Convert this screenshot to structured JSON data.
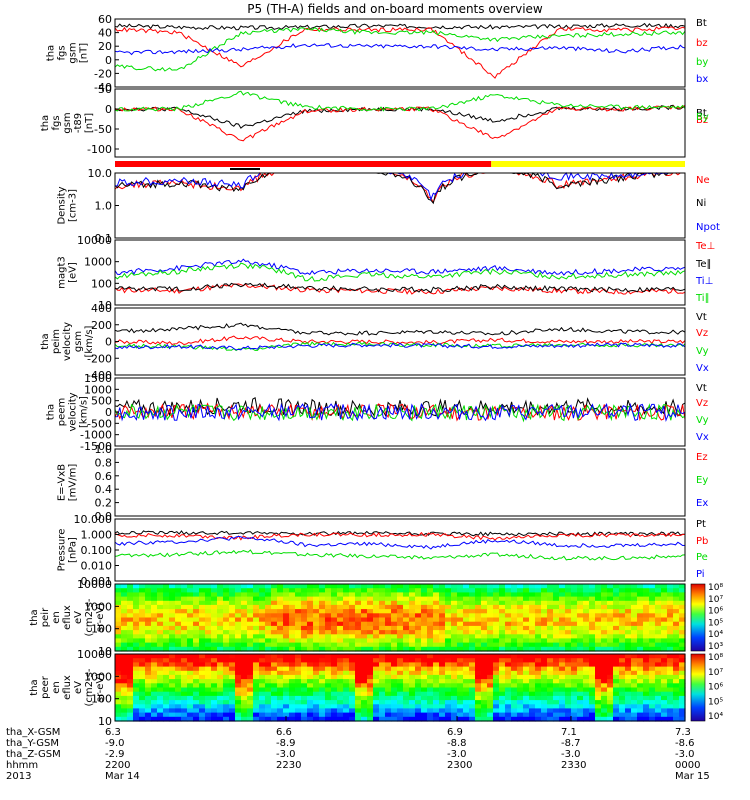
{
  "title": "P5 (TH-A) fields and on-board moments overview",
  "colors": {
    "black": "#000000",
    "red": "#ff0000",
    "green": "#00dd00",
    "blue": "#0000ff",
    "yellow": "#ffff00",
    "orange": "#ff8000"
  },
  "chart_data": [
    {
      "type": "line",
      "id": "fgs",
      "ylabel": [
        "tha",
        "fgs",
        "gsm",
        "[nT]"
      ],
      "ylim": [
        -40,
        60
      ],
      "ticks": [
        "60",
        "40",
        "20",
        "0",
        "-20",
        "-40"
      ],
      "tick_values": [
        60,
        40,
        20,
        0,
        -20,
        -40
      ],
      "series": [
        {
          "name": "Bt",
          "color": "#000000",
          "levels": [
            50,
            48,
            47,
            48,
            50,
            49,
            48,
            49,
            51,
            50
          ]
        },
        {
          "name": "bz",
          "color": "#ff0000",
          "levels": [
            45,
            40,
            -10,
            45,
            44,
            45,
            -25,
            45,
            44,
            46
          ]
        },
        {
          "name": "by",
          "color": "#00dd00",
          "levels": [
            -10,
            -15,
            40,
            45,
            40,
            40,
            30,
            35,
            38,
            40
          ]
        },
        {
          "name": "bx",
          "color": "#0000ff",
          "levels": [
            10,
            12,
            15,
            22,
            20,
            20,
            15,
            18,
            12,
            20
          ]
        }
      ]
    },
    {
      "type": "line",
      "id": "fgs89",
      "ylabel": [
        "tha",
        "fgs",
        "gsm",
        "-t89",
        "[nT]"
      ],
      "ylim": [
        -120,
        50
      ],
      "ticks": [
        "50",
        "0",
        "-50",
        "-100"
      ],
      "tick_values": [
        50,
        0,
        -50,
        -100
      ],
      "series": [
        {
          "name": "Bt",
          "color": "#000000",
          "levels": [
            0,
            0,
            -45,
            -5,
            0,
            0,
            -30,
            2,
            0,
            5
          ]
        },
        {
          "name": "Bz",
          "color": "#ff0000",
          "levels": [
            0,
            0,
            -80,
            -5,
            0,
            0,
            -75,
            0,
            0,
            5
          ]
        },
        {
          "name": "By",
          "color": "#00dd00",
          "levels": [
            0,
            0,
            40,
            5,
            0,
            0,
            35,
            10,
            5,
            5
          ]
        }
      ]
    },
    {
      "type": "line",
      "id": "density",
      "ylabel": [
        "Density",
        "[cm-3]"
      ],
      "log": true,
      "ylim": [
        0.1,
        10
      ],
      "ticks": [
        "10.0",
        "1.0",
        "0.1"
      ],
      "tick_values": [
        10,
        1,
        0.1
      ],
      "series": [
        {
          "name": "Ne",
          "color": "#ff0000",
          "levels": [
            4,
            5,
            3,
            20,
            15,
            1.2,
            15,
            4,
            7,
            12
          ]
        },
        {
          "name": "Ni",
          "color": "#000000",
          "levels": [
            4,
            5,
            3,
            20,
            15,
            1.2,
            15,
            4,
            7,
            12
          ]
        },
        {
          "name": "Npot",
          "color": "#0000ff",
          "levels": [
            5,
            6,
            4,
            25,
            18,
            1.5,
            18,
            8,
            8,
            13
          ]
        }
      ]
    },
    {
      "type": "line",
      "id": "magt3",
      "ylabel": [
        "magt3",
        "[eV]"
      ],
      "log": true,
      "ylim": [
        10,
        10000
      ],
      "ticks": [
        "10000",
        "1000",
        "100",
        "10"
      ],
      "tick_values": [
        10000,
        1000,
        100,
        10
      ],
      "series": [
        {
          "name": "Te⊥",
          "color": "#ff0000",
          "levels": [
            50,
            45,
            80,
            50,
            45,
            40,
            60,
            45,
            40,
            45
          ]
        },
        {
          "name": "Te∥",
          "color": "#000000",
          "levels": [
            60,
            55,
            90,
            60,
            55,
            50,
            70,
            55,
            50,
            55
          ]
        },
        {
          "name": "Ti⊥",
          "color": "#0000ff",
          "levels": [
            300,
            500,
            1000,
            300,
            400,
            350,
            500,
            300,
            400,
            500
          ]
        },
        {
          "name": "Ti∥",
          "color": "#00dd00",
          "levels": [
            200,
            350,
            700,
            150,
            250,
            200,
            350,
            200,
            250,
            300
          ]
        }
      ]
    },
    {
      "type": "line",
      "id": "peim",
      "ylabel": [
        "tha",
        "peim",
        "velocity",
        "gsm",
        "[km/s]"
      ],
      "ylim": [
        -400,
        400
      ],
      "ticks": [
        "400",
        "200",
        "0",
        "-200",
        "-400"
      ],
      "tick_values": [
        400,
        200,
        0,
        -200,
        -400
      ],
      "series": [
        {
          "name": "Vt",
          "color": "#000000",
          "levels": [
            120,
            150,
            200,
            100,
            100,
            120,
            90,
            150,
            120,
            110
          ]
        },
        {
          "name": "Vz",
          "color": "#ff0000",
          "levels": [
            0,
            -20,
            50,
            0,
            0,
            -10,
            20,
            0,
            0,
            0
          ]
        },
        {
          "name": "Vy",
          "color": "#00dd00",
          "levels": [
            -50,
            -60,
            -100,
            -30,
            -30,
            -40,
            -50,
            -40,
            -40,
            -50
          ]
        },
        {
          "name": "Vx",
          "color": "#0000ff",
          "levels": [
            -70,
            -60,
            -80,
            -50,
            -40,
            -50,
            -60,
            -50,
            -40,
            -50
          ]
        }
      ]
    },
    {
      "type": "line",
      "id": "peem",
      "ylabel": [
        "tha",
        "peem",
        "velocity",
        "[km/s]"
      ],
      "ylim": [
        -1500,
        1500
      ],
      "ticks": [
        "1500",
        "1000",
        "500",
        "0",
        "-500",
        "-1000",
        "-1500"
      ],
      "tick_values": [
        1500,
        1000,
        500,
        0,
        -500,
        -1000,
        -1500
      ],
      "series": [
        {
          "name": "Vt",
          "color": "#000000",
          "levels": [
            150,
            200,
            300,
            200,
            150,
            200,
            200,
            250,
            200,
            180
          ]
        },
        {
          "name": "Vz",
          "color": "#ff0000",
          "levels": [
            0,
            0,
            50,
            0,
            0,
            0,
            0,
            0,
            0,
            0
          ]
        },
        {
          "name": "Vy",
          "color": "#00dd00",
          "levels": [
            -30,
            -20,
            -50,
            -20,
            -10,
            -20,
            -30,
            -20,
            -20,
            -20
          ]
        },
        {
          "name": "Vx",
          "color": "#0000ff",
          "levels": [
            -10,
            -10,
            -20,
            -10,
            -10,
            -10,
            -10,
            -10,
            -10,
            -10
          ]
        }
      ]
    },
    {
      "type": "line",
      "id": "exb",
      "ylabel": [
        "E=-VxB",
        "[mV/m]"
      ],
      "ylim": [
        0,
        1
      ],
      "ticks": [
        "1.0",
        "0.8",
        "0.6",
        "0.4",
        "0.2",
        "0.0"
      ],
      "tick_values": [
        1,
        0.8,
        0.6,
        0.4,
        0.2,
        0
      ],
      "series": [
        {
          "name": "Ez",
          "color": "#ff0000",
          "levels": []
        },
        {
          "name": "Ey",
          "color": "#00dd00",
          "levels": []
        },
        {
          "name": "Ex",
          "color": "#0000ff",
          "levels": []
        }
      ]
    },
    {
      "type": "line",
      "id": "pressure",
      "ylabel": [
        "Pressure",
        "[nPa]"
      ],
      "log": true,
      "ylim": [
        0.001,
        10
      ],
      "ticks": [
        "10.000",
        "1.000",
        "0.100",
        "0.010",
        "0.001"
      ],
      "tick_values": [
        10,
        1,
        0.1,
        0.01,
        0.001
      ],
      "series": [
        {
          "name": "Pt",
          "color": "#000000",
          "levels": [
            1.3,
            1.3,
            1.2,
            1.2,
            1.2,
            1.1,
            1.1,
            1.1,
            1.1,
            1.1
          ]
        },
        {
          "name": "Pb",
          "color": "#ff0000",
          "levels": [
            0.9,
            0.85,
            0.6,
            1.0,
            0.95,
            1.0,
            0.5,
            0.9,
            0.9,
            0.95
          ]
        },
        {
          "name": "Pe",
          "color": "#00dd00",
          "levels": [
            0.04,
            0.05,
            0.08,
            0.05,
            0.04,
            0.03,
            0.05,
            0.03,
            0.03,
            0.04
          ]
        },
        {
          "name": "Pi",
          "color": "#0000ff",
          "levels": [
            0.25,
            0.35,
            0.6,
            0.2,
            0.25,
            0.15,
            0.4,
            0.2,
            0.2,
            0.25
          ]
        }
      ]
    },
    {
      "type": "heatmap",
      "id": "peir",
      "ylabel": [
        "tha",
        "peir",
        "en",
        "eflux",
        "eV",
        "(cm2-s-",
        "sr-eV)"
      ],
      "log": true,
      "ylim": [
        10,
        10000
      ],
      "ticks": [
        "10000",
        "1000",
        "100",
        "10"
      ],
      "tick_values": [
        10000,
        1000,
        100,
        10
      ],
      "colorbar": {
        "ticks": [
          "10⁸",
          "10⁷",
          "10⁶",
          "10⁵",
          "10⁴",
          "10³"
        ],
        "range": [
          3,
          8
        ]
      }
    },
    {
      "type": "heatmap",
      "id": "peer",
      "ylabel": [
        "tha",
        "peer",
        "en",
        "eflux",
        "eV",
        "(cm2-s-",
        "sr-eV)"
      ],
      "log": true,
      "ylim": [
        10,
        10000
      ],
      "ticks": [
        "10000",
        "1000",
        "100",
        "10"
      ],
      "tick_values": [
        10000,
        1000,
        100,
        10
      ],
      "colorbar": {
        "ticks": [
          "10⁸",
          "10⁷",
          "10⁶",
          "10⁵",
          "10⁴"
        ],
        "range": [
          4,
          8
        ]
      }
    }
  ],
  "mode_bar": {
    "red_until": 6.96,
    "x_start": 6.3,
    "x_end": 7.3
  },
  "x_axis": {
    "xlim": [
      6.3,
      7.3
    ],
    "tick_values": [
      6.3,
      6.6,
      6.9,
      7.1,
      7.3
    ],
    "rows": [
      {
        "label": "tha_X-GSM",
        "values": [
          "6.3",
          "6.6",
          "6.9",
          "7.1",
          "7.3"
        ]
      },
      {
        "label": "tha_Y-GSM",
        "values": [
          "-9.0",
          "-8.9",
          "-8.8",
          "-8.7",
          "-8.6"
        ]
      },
      {
        "label": "tha_Z-GSM",
        "values": [
          "-2.9",
          "-3.0",
          "-3.0",
          "-3.0",
          "-3.0"
        ]
      },
      {
        "label": "hhmm",
        "values": [
          "2200",
          "2230",
          "2300",
          "2330",
          "0000"
        ]
      },
      {
        "label": "2013",
        "values": [
          "Mar 14",
          "",
          "",
          "",
          "Mar 15"
        ]
      }
    ]
  }
}
